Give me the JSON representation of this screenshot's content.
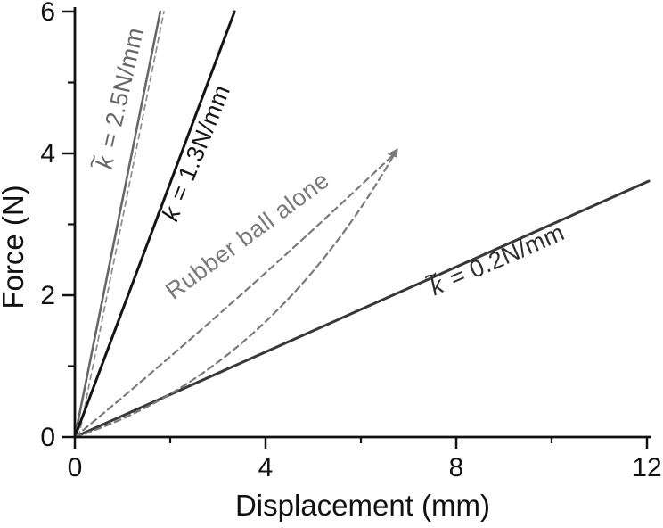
{
  "figure": {
    "background": "#ffffff",
    "axis_color": "#111111",
    "description": "Force versus displacement curves for springs of different effective stiffness and a rubber ball alone"
  },
  "chart_data": {
    "type": "line",
    "title": "",
    "xlabel": "Displacement (mm)",
    "ylabel": "Force (N)",
    "xlim": [
      0,
      12
    ],
    "ylim": [
      0,
      6
    ],
    "grid": false,
    "legend_position": "none",
    "x_ticks": {
      "major": [
        0,
        4,
        8,
        12
      ],
      "minor": [
        2,
        6,
        10
      ],
      "labels": [
        "0",
        "4",
        "8",
        "12"
      ]
    },
    "y_ticks": {
      "major": [
        0,
        2,
        4,
        6
      ],
      "minor": [
        1,
        3,
        5
      ],
      "labels": [
        "0",
        "2",
        "4",
        "6"
      ]
    },
    "series": [
      {
        "name": "spring-k-2.5N-per-mm",
        "label": "k̃ = 2.5N/mm",
        "nominal_stiffness_N_per_mm": 2.5,
        "style": "solid",
        "color": "#686868",
        "width": 2.6,
        "points": [
          [
            0,
            0
          ],
          [
            1.79,
            6.0
          ]
        ]
      },
      {
        "name": "spring-k-2.5N-per-mm-return",
        "label": "",
        "style": "dashed",
        "dash": "6 5",
        "color": "#8d8d8d",
        "width": 1.7,
        "points": [
          [
            0.08,
            0
          ],
          [
            1.87,
            6.0
          ]
        ]
      },
      {
        "name": "spring-k-1.3N-per-mm",
        "label": "k̃ = 1.3N/mm",
        "nominal_stiffness_N_per_mm": 1.3,
        "style": "solid",
        "color": "#141414",
        "width": 3.0,
        "points": [
          [
            0,
            0
          ],
          [
            3.35,
            6.0
          ]
        ]
      },
      {
        "name": "spring-k-0.2N-per-mm",
        "label": "k̃ = 0.2N/mm",
        "nominal_stiffness_N_per_mm": 0.2,
        "style": "solid",
        "color": "#383838",
        "width": 3.0,
        "points": [
          [
            0,
            0
          ],
          [
            12.04,
            3.61
          ]
        ]
      },
      {
        "name": "rubber-ball-alone-upper",
        "label": "Rubber ball alone",
        "style": "dashed",
        "dash": "7 5",
        "color": "#7a7a7a",
        "width": 2.2,
        "curve": {
          "p0": [
            0,
            0
          ],
          "c": [
            3.44,
            1.91
          ],
          "p2": [
            6.71,
            4.0
          ]
        }
      },
      {
        "name": "rubber-ball-alone-lower",
        "label": "Rubber ball alone",
        "style": "dashed",
        "dash": "7 5",
        "color": "#7a7a7a",
        "width": 2.2,
        "curve": {
          "p0": [
            0,
            0
          ],
          "c": [
            4.04,
            0.88
          ],
          "p2": [
            6.71,
            4.0
          ]
        }
      }
    ],
    "annotations": [
      {
        "text": "k̃ = 2.5N/mm",
        "italic_k": true,
        "x": 1.1,
        "y": 4.74,
        "angle": -77,
        "color": "#686868",
        "size": 27
      },
      {
        "text": "k̃ = 1.3N/mm",
        "italic_k": true,
        "x": 2.69,
        "y": 3.95,
        "angle": -68,
        "color": "#161616",
        "size": 27
      },
      {
        "text": "Rubber ball alone",
        "italic_k": false,
        "x": 3.72,
        "y": 2.75,
        "angle": -36.5,
        "color": "#7a7a7a",
        "size": 27
      },
      {
        "text": "k̃ = 0.2N/mm",
        "italic_k": true,
        "x": 8.9,
        "y": 2.39,
        "angle": -23.5,
        "color": "#2e2e2e",
        "size": 27
      }
    ],
    "arrow": {
      "x": 6.71,
      "y": 4.0,
      "angle": -50,
      "color": "#7a7a7a"
    }
  }
}
